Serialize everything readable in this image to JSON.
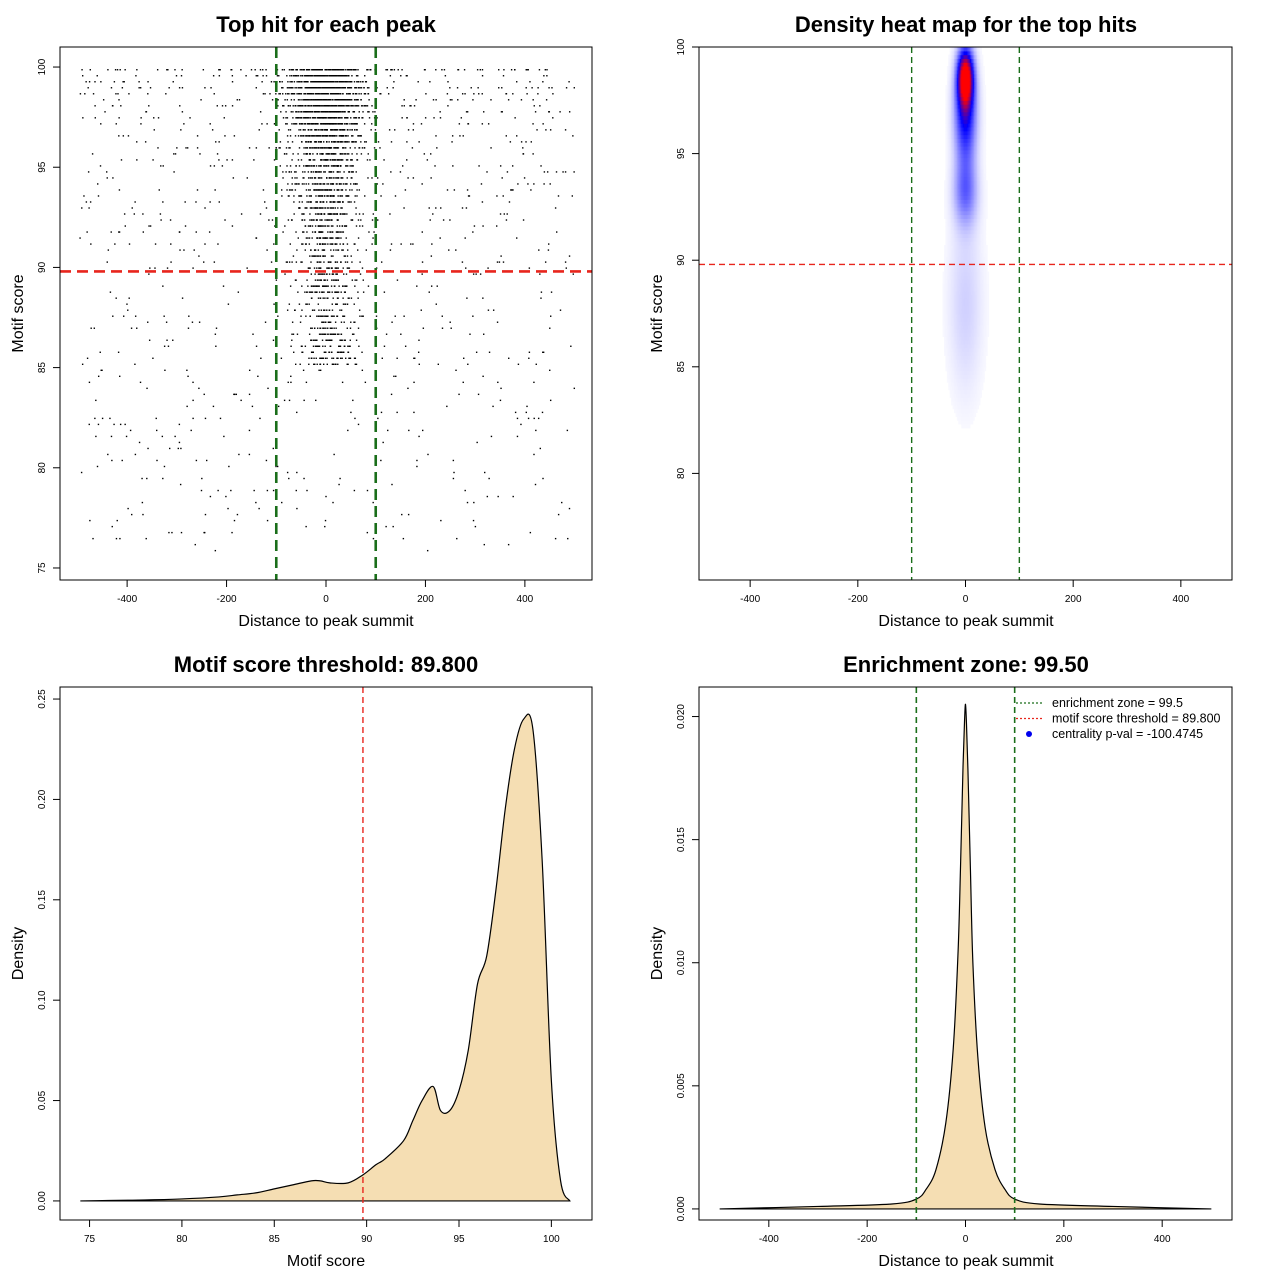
{
  "colors": {
    "threshold": "#e8251d",
    "zone": "#1a6e1a",
    "fill": "#f5deb3",
    "heat_low": "#ffffff",
    "heat_mid": "#0000ff",
    "heat_high": "#ff0000",
    "legend_dot": "#0000ee"
  },
  "chart_data": [
    {
      "type": "scatter",
      "title": "Top hit for each peak",
      "xlabel": "Distance to peak summit",
      "ylabel": "Motif score",
      "xlim": [
        -535,
        535
      ],
      "ylim": [
        74.4,
        101.0
      ],
      "xticks": [
        "-400",
        "-200",
        "0",
        "200",
        "400"
      ],
      "xtick_values": [
        -400,
        -200,
        0,
        200,
        400
      ],
      "yticks": [
        "75",
        "80",
        "85",
        "90",
        "95",
        "100"
      ],
      "ytick_values": [
        75,
        80,
        85,
        90,
        95,
        100
      ],
      "vlines": [
        -100,
        100
      ],
      "hline": 89.8,
      "points_generated": "approx. 3500 top hits within -500..500 bp; dense near 0 bp and scores 93-100"
    },
    {
      "type": "heatmap",
      "title": "Density heat map for the top hits",
      "xlabel": "Distance to peak summit",
      "ylabel": "Motif score",
      "xlim": [
        -495,
        495
      ],
      "ylim": [
        75.0,
        100.0
      ],
      "xticks": [
        "-400",
        "-200",
        "0",
        "200",
        "400"
      ],
      "xtick_values": [
        -400,
        -200,
        0,
        200,
        400
      ],
      "yticks": [
        "80",
        "85",
        "90",
        "95",
        "100"
      ],
      "ytick_values": [
        80,
        85,
        90,
        95,
        100
      ],
      "vlines": [
        -100,
        100
      ],
      "hline": 89.8,
      "hotspots": [
        {
          "x": 0,
          "y": 98.6,
          "sx": 10,
          "sy": 0.9,
          "level": 1.0
        },
        {
          "x": 0,
          "y": 96.8,
          "sx": 14,
          "sy": 1.6,
          "level": 0.55
        },
        {
          "x": 0,
          "y": 93.2,
          "sx": 15,
          "sy": 1.1,
          "level": 0.3
        },
        {
          "x": 0,
          "y": 88.0,
          "sx": 22,
          "sy": 3.0,
          "level": 0.1
        }
      ]
    },
    {
      "type": "area",
      "title": "Motif score threshold: 89.800",
      "xlabel": "Motif score",
      "ylabel": "Density",
      "xlim": [
        73.4,
        102.2
      ],
      "ylim": [
        -0.0095,
        0.256
      ],
      "xticks": [
        "75",
        "80",
        "85",
        "90",
        "95",
        "100"
      ],
      "xtick_values": [
        75,
        80,
        85,
        90,
        95,
        100
      ],
      "yticks": [
        "0.00",
        "0.05",
        "0.10",
        "0.15",
        "0.20",
        "0.25"
      ],
      "ytick_values": [
        0.0,
        0.05,
        0.1,
        0.15,
        0.2,
        0.25
      ],
      "vlines": [
        89.8
      ],
      "x": [
        74.5,
        76,
        78,
        80,
        82,
        83,
        84,
        85,
        86,
        87,
        87.5,
        88,
        89,
        89.8,
        90.5,
        91,
        92,
        92.5,
        93,
        93.6,
        94,
        94.5,
        95,
        95.5,
        96,
        96.5,
        97,
        97.5,
        98,
        98.5,
        99,
        99.5,
        100,
        100.5,
        101
      ],
      "y": [
        0.0,
        0.0002,
        0.0005,
        0.001,
        0.002,
        0.003,
        0.004,
        0.006,
        0.008,
        0.01,
        0.01,
        0.009,
        0.009,
        0.013,
        0.018,
        0.021,
        0.03,
        0.04,
        0.05,
        0.057,
        0.045,
        0.045,
        0.055,
        0.075,
        0.108,
        0.122,
        0.155,
        0.195,
        0.225,
        0.24,
        0.235,
        0.17,
        0.06,
        0.01,
        0.0
      ]
    },
    {
      "type": "area",
      "title": "Enrichment zone: 99.50",
      "xlabel": "Distance to peak summit",
      "ylabel": "Density",
      "xlim": [
        -542,
        542
      ],
      "ylim": [
        -0.00045,
        0.0212
      ],
      "xticks": [
        "-400",
        "-200",
        "0",
        "200",
        "400"
      ],
      "xtick_values": [
        -400,
        -200,
        0,
        200,
        400
      ],
      "yticks": [
        "0.000",
        "0.005",
        "0.010",
        "0.015",
        "0.020"
      ],
      "ytick_values": [
        0.0,
        0.005,
        0.01,
        0.015,
        0.02
      ],
      "vlines": [
        -100,
        100
      ],
      "x": [
        -500,
        -300,
        -150,
        -100,
        -80,
        -60,
        -40,
        -25,
        -15,
        -10,
        -5,
        -2,
        0,
        2,
        5,
        10,
        15,
        25,
        40,
        60,
        80,
        100,
        150,
        300,
        500
      ],
      "y": [
        0.0,
        0.0001,
        0.0002,
        0.0004,
        0.0008,
        0.0016,
        0.0035,
        0.0065,
        0.0105,
        0.014,
        0.018,
        0.0198,
        0.0205,
        0.0197,
        0.0178,
        0.0138,
        0.01,
        0.0062,
        0.0033,
        0.0016,
        0.0008,
        0.0004,
        0.0002,
        0.0001,
        0.0
      ],
      "legend": [
        {
          "text": "enrichment zone = 99.5",
          "style": "dotted-line"
        },
        {
          "text": "motif score threshold = 89.800",
          "style": "dotted-line"
        },
        {
          "text": "centrality p-val = -100.4745",
          "style": "dot"
        }
      ]
    }
  ]
}
